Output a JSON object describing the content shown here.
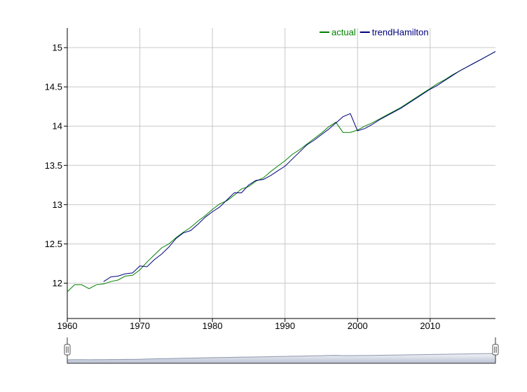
{
  "chart_data": {
    "type": "line",
    "title": "",
    "xlabel": "",
    "ylabel": "",
    "xlim": [
      1960,
      2019
    ],
    "ylim": [
      11.55,
      15.25
    ],
    "grid": true,
    "legend_position": "top-right",
    "x_ticks": [
      "1960",
      "1970",
      "1980",
      "1990",
      "2000",
      "2010"
    ],
    "x_tick_values": [
      1960,
      1970,
      1980,
      1990,
      2000,
      2010
    ],
    "y_ticks": [
      "12",
      "12.5",
      "13",
      "13.5",
      "14",
      "14.5",
      "15"
    ],
    "y_tick_values": [
      12,
      12.5,
      13,
      13.5,
      14,
      14.5,
      15
    ],
    "series": [
      {
        "name": "actual",
        "color": "#008000",
        "x": [
          1960,
          1961,
          1962,
          1963,
          1964,
          1965,
          1966,
          1967,
          1968,
          1969,
          1970,
          1971,
          1972,
          1973,
          1974,
          1975,
          1976,
          1977,
          1978,
          1979,
          1980,
          1981,
          1982,
          1983,
          1984,
          1985,
          1986,
          1987,
          1988,
          1989,
          1990,
          1991,
          1992,
          1993,
          1994,
          1995,
          1996,
          1997,
          1998,
          1999,
          2000,
          2001,
          2002,
          2003,
          2004,
          2005,
          2006,
          2007,
          2008,
          2009,
          2010,
          2011,
          2012,
          2013,
          2014,
          2015,
          2016,
          2017,
          2018,
          2019
        ],
        "values": [
          11.89,
          11.98,
          11.98,
          11.93,
          11.98,
          11.99,
          12.02,
          12.04,
          12.09,
          12.1,
          12.17,
          12.27,
          12.36,
          12.45,
          12.5,
          12.58,
          12.65,
          12.71,
          12.79,
          12.86,
          12.94,
          13.01,
          13.05,
          13.12,
          13.2,
          13.23,
          13.3,
          13.34,
          13.42,
          13.49,
          13.56,
          13.64,
          13.7,
          13.77,
          13.84,
          13.91,
          13.99,
          14.05,
          13.92,
          13.92,
          13.95,
          14.0,
          14.04,
          14.09,
          14.14,
          14.19,
          14.24,
          14.3,
          14.36,
          14.42,
          14.48,
          14.54,
          14.59,
          14.65,
          14.7,
          14.75,
          14.8,
          14.85,
          14.9,
          14.95
        ]
      },
      {
        "name": "trendHamilton",
        "color": "#000080",
        "x": [
          1965,
          1966,
          1967,
          1968,
          1969,
          1970,
          1971,
          1972,
          1973,
          1974,
          1975,
          1976,
          1977,
          1978,
          1979,
          1980,
          1981,
          1982,
          1983,
          1984,
          1985,
          1986,
          1987,
          1988,
          1989,
          1990,
          1991,
          1992,
          1993,
          1994,
          1995,
          1996,
          1997,
          1998,
          1999,
          2000,
          2001,
          2002,
          2003,
          2004,
          2005,
          2006,
          2007,
          2008,
          2009,
          2010,
          2011,
          2012,
          2013,
          2014,
          2015,
          2016,
          2017,
          2018,
          2019
        ],
        "values": [
          12.02,
          12.08,
          12.09,
          12.12,
          12.13,
          12.22,
          12.21,
          12.3,
          12.37,
          12.46,
          12.57,
          12.64,
          12.67,
          12.75,
          12.84,
          12.91,
          12.97,
          13.06,
          13.15,
          13.15,
          13.25,
          13.31,
          13.32,
          13.37,
          13.43,
          13.49,
          13.58,
          13.67,
          13.76,
          13.82,
          13.89,
          13.96,
          14.04,
          14.12,
          14.16,
          13.94,
          13.97,
          14.02,
          14.08,
          14.13,
          14.18,
          14.23,
          14.29,
          14.35,
          14.41,
          14.47,
          14.52,
          14.58,
          14.64,
          14.7,
          14.75,
          14.8,
          14.85,
          14.9,
          14.95
        ]
      }
    ]
  },
  "range_selector": {
    "selection": [
      1960,
      2019
    ]
  }
}
